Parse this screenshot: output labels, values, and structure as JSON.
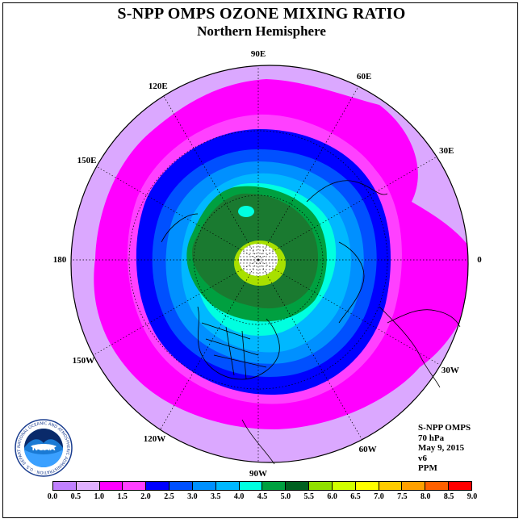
{
  "title": "S-NPP OMPS OZONE MIXING RATIO",
  "subtitle": "Northern Hemisphere",
  "longitude_labels": [
    {
      "text": "90E",
      "lon": 90
    },
    {
      "text": "60E",
      "lon": 60
    },
    {
      "text": "30E",
      "lon": 30
    },
    {
      "text": "0",
      "lon": 0
    },
    {
      "text": "30W",
      "lon": -30
    },
    {
      "text": "60W",
      "lon": -60
    },
    {
      "text": "90W",
      "lon": -90
    },
    {
      "text": "120W",
      "lon": -120
    },
    {
      "text": "150W",
      "lon": -150
    },
    {
      "text": "180",
      "lon": 180
    },
    {
      "text": "150E",
      "lon": 150
    },
    {
      "text": "120E",
      "lon": 120
    }
  ],
  "info": {
    "instrument": "S-NPP OMPS",
    "level": "70 hPa",
    "date": "May 9, 2015",
    "version": "v6",
    "units": "PPM"
  },
  "colorbar": {
    "ticks": [
      "0.0",
      "0.5",
      "1.0",
      "1.5",
      "2.0",
      "2.5",
      "3.0",
      "3.5",
      "4.0",
      "4.5",
      "5.0",
      "5.5",
      "6.0",
      "6.5",
      "7.0",
      "7.5",
      "8.0",
      "8.5",
      "9.0"
    ],
    "colors": [
      "#c080ff",
      "#e0b0ff",
      "#ff00ff",
      "#ff40ff",
      "#0000ff",
      "#0050ff",
      "#0090ff",
      "#00b8ff",
      "#00ffe0",
      "#00a040",
      "#006020",
      "#90e000",
      "#d0ff00",
      "#ffff00",
      "#ffcc00",
      "#ffa000",
      "#ff6000",
      "#ff0000",
      "#8b4513"
    ]
  },
  "logo": {
    "name": "NOAA",
    "ring_text": "NATIONAL OCEANIC AND ATMOSPHERIC ADMINISTRATION · U.S. DEPARTMENT OF COMMERCE"
  },
  "colors": {
    "outer": "#dba8ff",
    "magenta": "#ff00ff",
    "blue": "#0000ff",
    "dark_green": "#1a7a30",
    "missing_center": "#ffffff"
  }
}
